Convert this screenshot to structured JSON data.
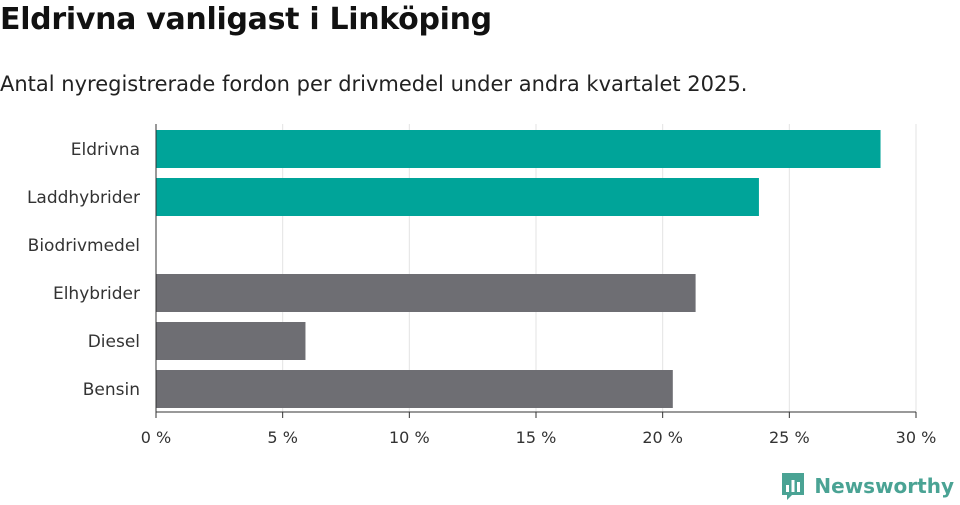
{
  "header": {
    "title": "Eldrivna vanligast i Linköping",
    "subtitle": "Antal nyregistrerade fordon per drivmedel under andra kvartalet 2025."
  },
  "brand": {
    "name": "Newsworthy",
    "icon": "newsworthy-logo-icon",
    "color": "#4aa394"
  },
  "chart_data": {
    "type": "bar",
    "orientation": "horizontal",
    "categories": [
      "Eldrivna",
      "Laddhybrider",
      "Biodrivmedel",
      "Elhybrider",
      "Diesel",
      "Bensin"
    ],
    "values": [
      28.6,
      23.8,
      0,
      21.3,
      5.9,
      20.4
    ],
    "colors": [
      "#00a499",
      "#00a499",
      "#00a499",
      "#6e6e73",
      "#6e6e73",
      "#6e6e73"
    ],
    "xlim": [
      0,
      30
    ],
    "xticks": [
      0,
      5,
      10,
      15,
      20,
      25,
      30
    ],
    "xtick_labels": [
      "0 %",
      "5 %",
      "10 %",
      "15 %",
      "20 %",
      "25 %",
      "30 %"
    ],
    "grid": true
  }
}
